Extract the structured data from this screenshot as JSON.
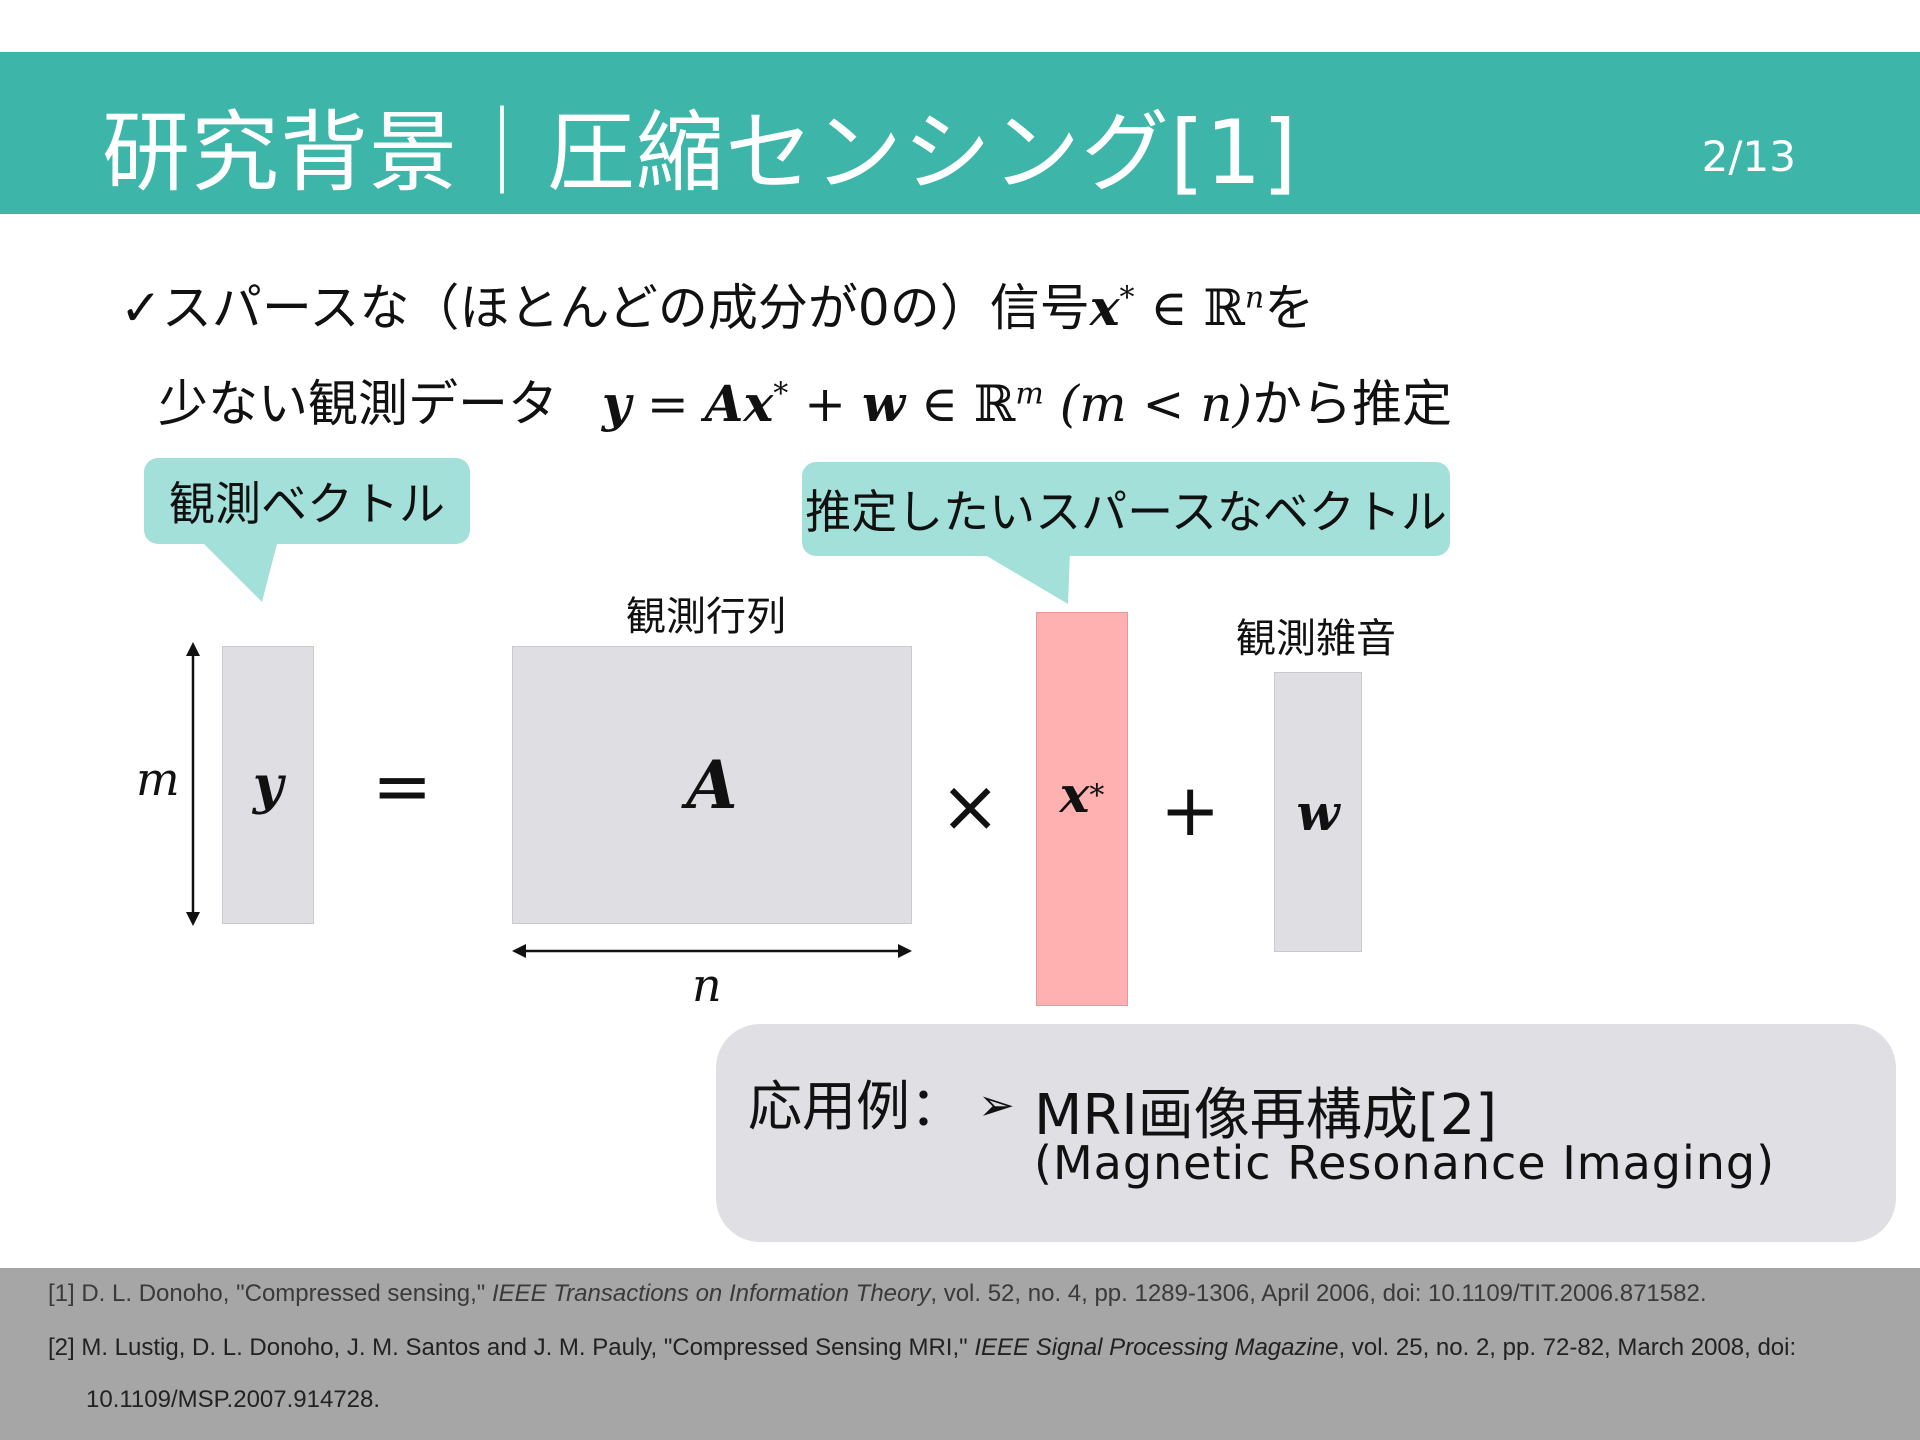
{
  "header": {
    "title": "研究背景｜圧縮センシング[1]",
    "page_number": "2/13"
  },
  "bullet": {
    "check": "✓",
    "line1_text": "スパースな（ほとんどの成分が0の）信号",
    "line1_math": "x",
    "line1_star": "*",
    "line1_in": " ∈ ℝ",
    "line1_sup": "n",
    "line1_tail": "を",
    "line2_text": "少ない観測データ",
    "line2_math_y": "y",
    "line2_math_eq": " = ",
    "line2_math_A": "A",
    "line2_math_x": "x",
    "line2_math_star": "*",
    "line2_math_plus": " + ",
    "line2_math_w": "w",
    "line2_math_in": " ∈ ℝ",
    "line2_math_sup": "m",
    "line2_cond": " (m < n)",
    "line2_tail": "から推定"
  },
  "diagram": {
    "callout_left": "観測ベクトル",
    "callout_right": "推定したいスパースなベクトル",
    "label_matrix": "観測行列",
    "label_noise": "観測雑音",
    "dim_m": "m",
    "dim_n": "n",
    "sym_y": "y",
    "sym_A": "A",
    "sym_x": "x",
    "sym_star": "*",
    "sym_w": "w",
    "op_eq": "=",
    "op_times": "×",
    "op_plus": "+",
    "colors": {
      "callout": "#a3e0d9",
      "matrix": "#dfdfe3",
      "sparse_vector": "#ffb0b0",
      "header": "#3db6a9"
    }
  },
  "application": {
    "label": "応用例：",
    "bullet_icon": "arrow-bullet-icon",
    "bullet_glyph": "➢",
    "item": "MRI画像再構成[2]",
    "sub": "(Magnetic Resonance Imaging)"
  },
  "references": {
    "ref1_pre": "[1] D. L. Donoho, \"Compressed sensing,\" ",
    "ref1_journal": "IEEE Transactions on Information Theory",
    "ref1_post": ", vol. 52, no. 4, pp. 1289-1306, April 2006, doi: 10.1109/TIT.2006.871582.",
    "ref2_pre": "[2] M. Lustig, D. L. Donoho, J. M. Santos and J. M. Pauly, \"Compressed Sensing MRI,\" ",
    "ref2_journal": "IEEE Signal Processing Magazine",
    "ref2_post": ", vol. 25, no. 2, pp. 72-82, March 2008, doi:",
    "ref2_line2": "10.1109/MSP.2007.914728."
  }
}
